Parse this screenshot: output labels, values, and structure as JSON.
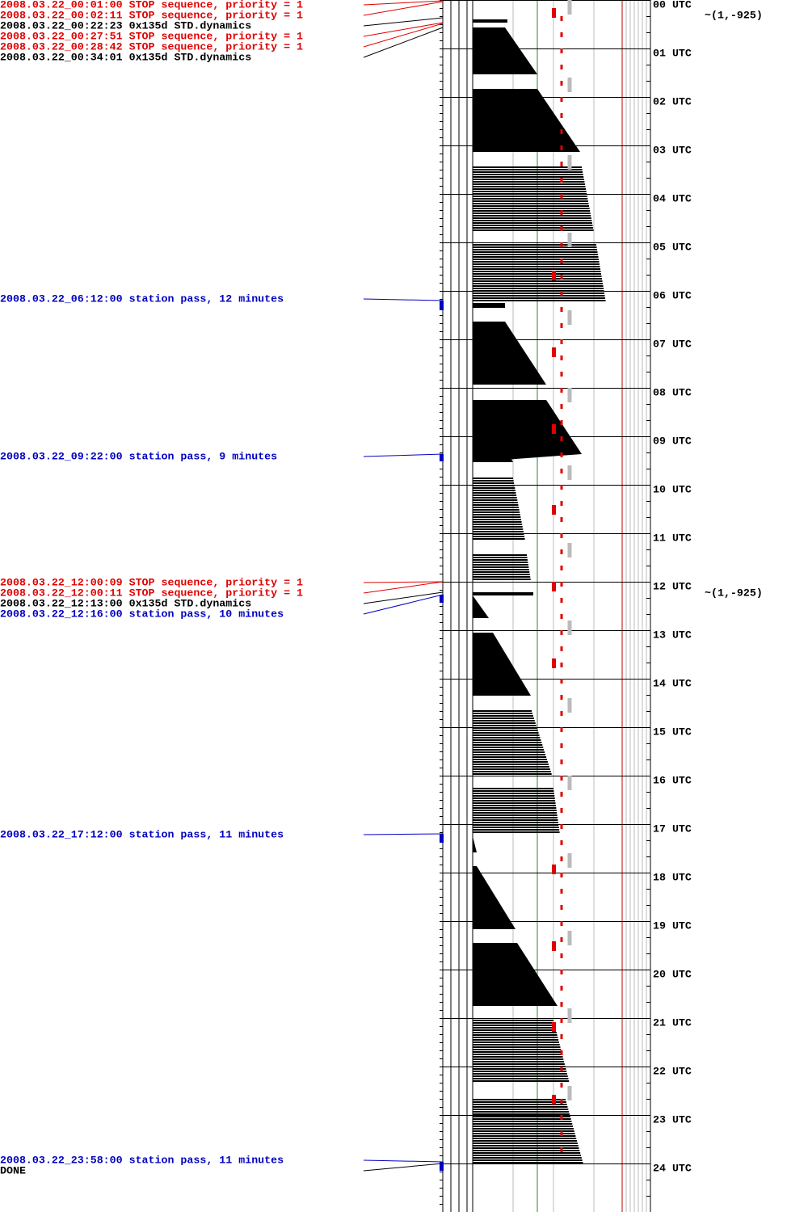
{
  "events": [
    {
      "text": "2008.03.22_00:01:00 STOP sequence, priority = 1",
      "color": "#e00000"
    },
    {
      "text": "2008.03.22_00:02:11 STOP sequence, priority = 1",
      "color": "#e00000"
    },
    {
      "text": "2008.03.22_00:22:23 0x135d STD.dynamics",
      "color": "#000000"
    },
    {
      "text": "2008.03.22_00:27:51 STOP sequence, priority = 1",
      "color": "#e00000"
    },
    {
      "text": "2008.03.22_00:28:42 STOP sequence, priority = 1",
      "color": "#e00000"
    },
    {
      "text": "2008.03.22_00:34:01 0x135d STD.dynamics",
      "color": "#000000"
    },
    {
      "text": "2008.03.22_06:12:00 station pass, 12 minutes",
      "color": "#0000c0"
    },
    {
      "text": "2008.03.22_09:22:00 station pass, 9 minutes",
      "color": "#0000c0"
    },
    {
      "text": "2008.03.22_12:00:09 STOP sequence, priority = 1",
      "color": "#e00000"
    },
    {
      "text": "2008.03.22_12:00:11 STOP sequence, priority = 1",
      "color": "#e00000"
    },
    {
      "text": "2008.03.22_12:13:00 0x135d STD.dynamics",
      "color": "#000000"
    },
    {
      "text": "2008.03.22_12:16:00 station pass, 10 minutes",
      "color": "#0000c0"
    },
    {
      "text": "2008.03.22_17:12:00 station pass, 11 minutes",
      "color": "#0000c0"
    },
    {
      "text": "2008.03.22_23:58:00 station pass, 11 minutes",
      "color": "#0000c0"
    },
    {
      "text": "DONE",
      "color": "#000000"
    }
  ],
  "hours": [
    "00 UTC",
    "01 UTC",
    "02 UTC",
    "03 UTC",
    "04 UTC",
    "05 UTC",
    "06 UTC",
    "07 UTC",
    "08 UTC",
    "09 UTC",
    "10 UTC",
    "11 UTC",
    "12 UTC",
    "13 UTC",
    "14 UTC",
    "15 UTC",
    "16 UTC",
    "17 UTC",
    "18 UTC",
    "19 UTC",
    "20 UTC",
    "21 UTC",
    "22 UTC",
    "23 UTC",
    "24 UTC"
  ],
  "annotations": [
    "~(1,-925)",
    "~(1,-925)"
  ]
}
